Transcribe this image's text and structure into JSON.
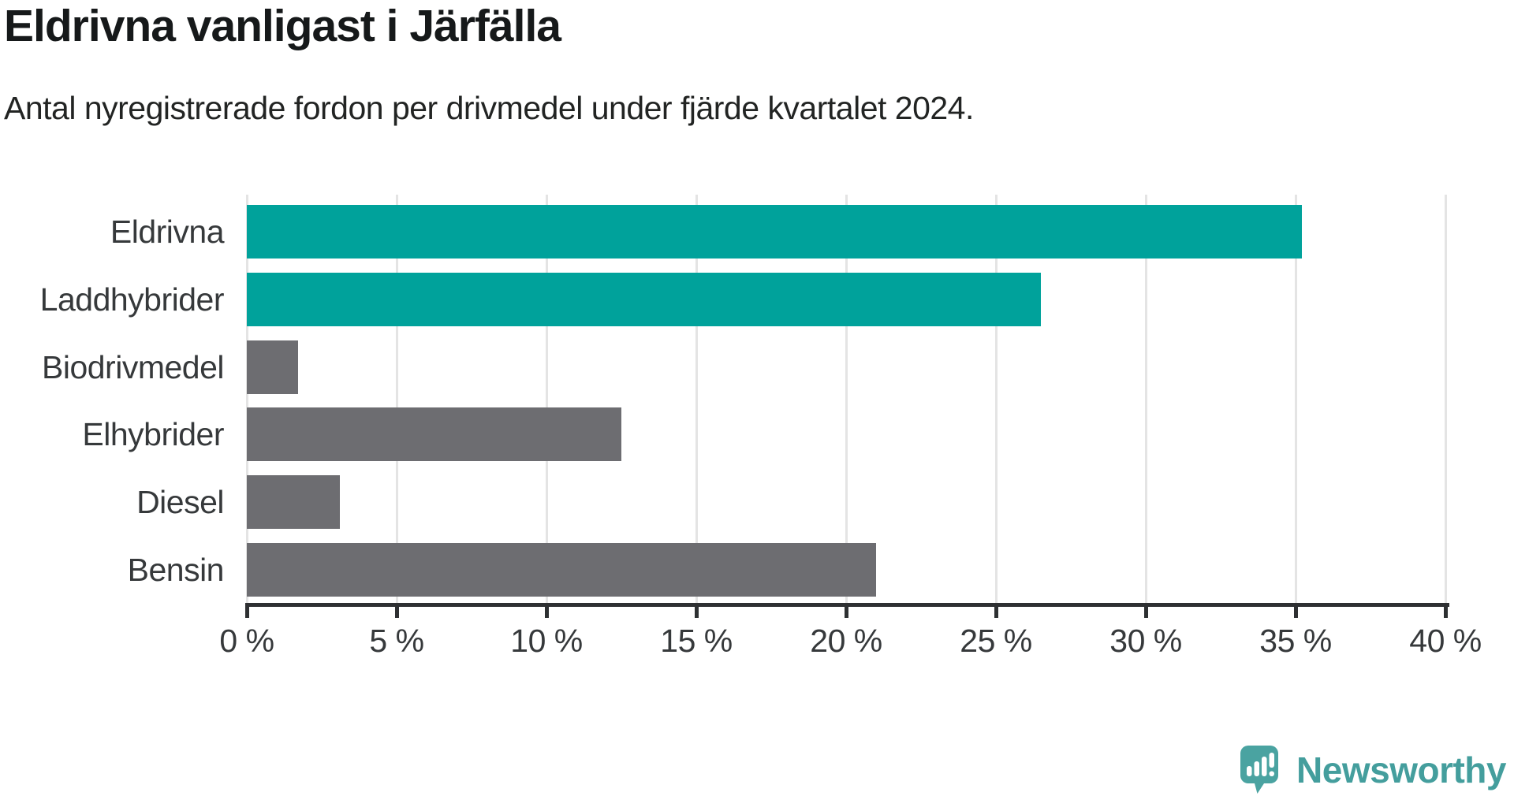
{
  "title": "Eldrivna vanligast i Järfälla",
  "subtitle": "Antal nyregistrerade fordon per drivmedel under fjärde kvartalet 2024.",
  "chart_data": {
    "type": "bar",
    "orientation": "horizontal",
    "title": "Eldrivna vanligast i Järfälla",
    "subtitle": "Antal nyregistrerade fordon per drivmedel under fjärde kvartalet 2024.",
    "categories": [
      "Eldrivna",
      "Laddhybrider",
      "Biodrivmedel",
      "Elhybrider",
      "Diesel",
      "Bensin"
    ],
    "values": [
      35.2,
      26.5,
      1.7,
      12.5,
      3.1,
      21.0
    ],
    "unit": "%",
    "xlim": [
      0,
      40
    ],
    "x_ticks": [
      0,
      5,
      10,
      15,
      20,
      25,
      30,
      35,
      40
    ],
    "x_tick_labels": [
      "0 %",
      "5 %",
      "10 %",
      "15 %",
      "20 %",
      "25 %",
      "30 %",
      "35 %",
      "40 %"
    ],
    "bar_colors": [
      "#00a29b",
      "#00a29b",
      "#6d6d71",
      "#6d6d71",
      "#6d6d71",
      "#6d6d71"
    ],
    "highlight_color": "#00a29b",
    "default_color": "#6d6d71",
    "grid": true,
    "legend": "none"
  },
  "branding": {
    "logo_text": "Newsworthy",
    "logo_color": "#4aa3a1",
    "logo_icon": "speech-bubble-bar-chart-exclamation"
  }
}
